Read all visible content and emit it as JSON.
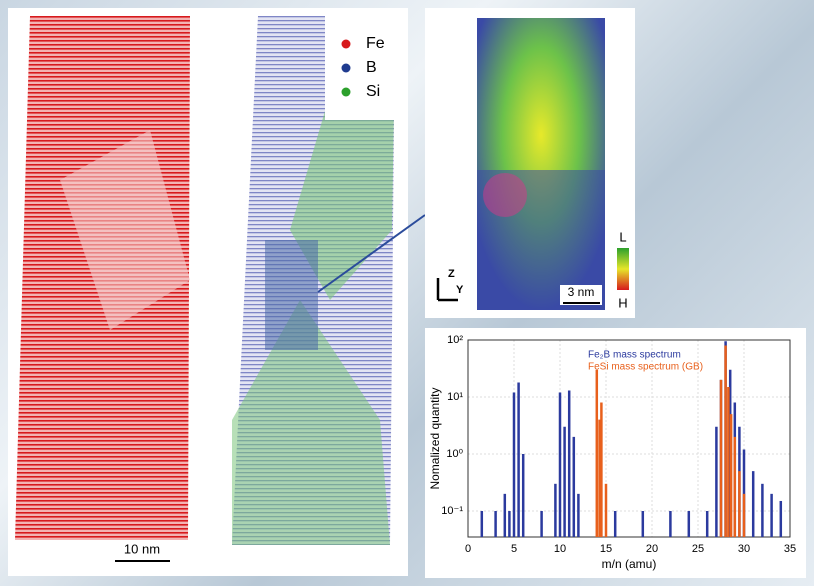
{
  "legend": [
    {
      "label": "Fe",
      "color": "#d7191c"
    },
    {
      "label": "B",
      "color": "#1f3b8f"
    },
    {
      "label": "Si",
      "color": "#2ca02c"
    }
  ],
  "scale_bars": [
    "10 nm",
    "3 nm"
  ],
  "colorbar": [
    "L",
    "H"
  ],
  "axes_labels": [
    "Z",
    "Y"
  ],
  "chart_data": {
    "type": "line",
    "x_label": "m/n (amu)",
    "y_label": "Nomalized quantity",
    "xlim": [
      0,
      35
    ],
    "xticks": [
      0,
      5,
      10,
      15,
      20,
      25,
      30,
      35
    ],
    "ylim": [
      0.035,
      100
    ],
    "log_y": true,
    "grid": true,
    "yticks": [
      {
        "value": 0.1,
        "label": "10⁻¹"
      },
      {
        "value": 1,
        "label": "10⁰"
      },
      {
        "value": 10,
        "label": "10¹"
      },
      {
        "value": 100,
        "label": "10²"
      }
    ],
    "series": [
      {
        "name": "Fe₂B mass spectrum",
        "color": "#2b3a9e",
        "x": [
          1.5,
          3,
          4,
          4.5,
          5,
          5.5,
          6,
          8,
          9.5,
          10,
          10.5,
          11,
          11.5,
          12,
          16,
          19,
          22,
          24,
          26,
          27,
          27.5,
          28,
          28.5,
          29,
          29.5,
          30,
          31,
          32,
          33,
          34
        ],
        "values": [
          0.1,
          0.1,
          0.2,
          0.1,
          12,
          18,
          1,
          0.1,
          0.3,
          12,
          3,
          13,
          2,
          0.2,
          0.1,
          0.1,
          0.1,
          0.1,
          0.1,
          3,
          20,
          95,
          30,
          8,
          3,
          1.2,
          0.5,
          0.3,
          0.2,
          0.15
        ]
      },
      {
        "name": "FeSi mass spectrum (GB)",
        "color": "#e8601c",
        "x": [
          14,
          14.3,
          14.5,
          15,
          27.5,
          28,
          28.3,
          28.6,
          29,
          29.5,
          30
        ],
        "values": [
          30,
          4,
          8,
          0.3,
          20,
          80,
          15,
          5,
          2,
          0.5,
          0.2
        ]
      }
    ]
  }
}
